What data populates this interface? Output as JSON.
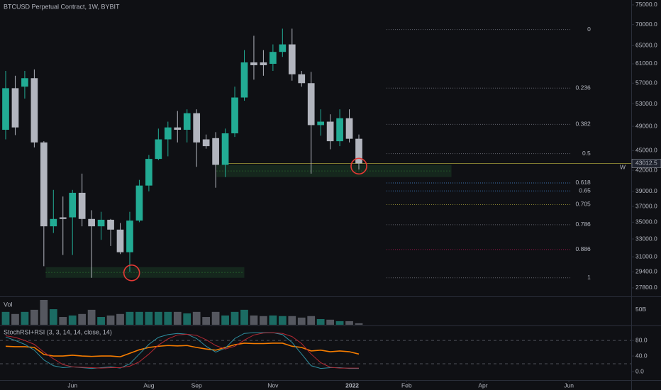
{
  "chart_data": {
    "type": "candlestick",
    "title": "BTCUSD Perpetual Contract, 1W, BYBIT",
    "log_scale": true,
    "up_color": "#22ab94",
    "down_color": "#b2b5be",
    "xlim": [
      -0.594,
      65.53
    ],
    "ylim": [
      26980,
      76300
    ],
    "xticks": [
      {
        "value": 7,
        "label": "Jun"
      },
      {
        "value": 15,
        "label": "Aug"
      },
      {
        "value": 20,
        "label": "Sep"
      },
      {
        "value": 28,
        "label": "Nov"
      },
      {
        "value": 36.3,
        "label": "2022"
      },
      {
        "value": 42,
        "label": "Feb"
      },
      {
        "value": 50,
        "label": "Apr"
      },
      {
        "value": 59,
        "label": "Jun"
      }
    ],
    "yticks": [
      {
        "value": 75000,
        "label": "75000.0"
      },
      {
        "value": 70000,
        "label": "70000.0"
      },
      {
        "value": 65000,
        "label": "65000.0"
      },
      {
        "value": 61000,
        "label": "61000.0"
      },
      {
        "value": 57000,
        "label": "57000.0"
      },
      {
        "value": 53000,
        "label": "53000.0"
      },
      {
        "value": 49000,
        "label": "49000.0"
      },
      {
        "value": 45000,
        "label": "45000.0"
      },
      {
        "value": 42000,
        "label": "42000.0"
      },
      {
        "value": 39000,
        "label": "39000.0"
      },
      {
        "value": 37000,
        "label": "37000.0"
      },
      {
        "value": 35000,
        "label": "35000.0"
      },
      {
        "value": 33000,
        "label": "33000.0"
      },
      {
        "value": 31000,
        "label": "31000.0"
      },
      {
        "value": 29400,
        "label": "29400.0"
      },
      {
        "value": 27800,
        "label": "27800.0"
      }
    ],
    "open": [
      48400,
      56000,
      56300,
      58000,
      46300,
      34500,
      35600,
      35600,
      38800,
      35400,
      34500,
      35300,
      34100,
      31500,
      35200,
      39800,
      43700,
      46800,
      48800,
      48400,
      51300,
      46800,
      47000,
      42800,
      47800,
      54200,
      61300,
      61300,
      61000,
      63600,
      65300,
      58800,
      57000,
      49200,
      49800,
      46500,
      50400,
      46900
    ],
    "high": [
      59500,
      58500,
      59500,
      59800,
      46500,
      39200,
      38300,
      39200,
      41500,
      36500,
      36300,
      35400,
      34900,
      36300,
      40600,
      44300,
      48600,
      49800,
      51700,
      52000,
      52000,
      47600,
      48000,
      48600,
      56300,
      64000,
      67300,
      64000,
      65300,
      69000,
      69000,
      59500,
      59300,
      52000,
      51100,
      52000,
      52000,
      47600
    ],
    "low": [
      46800,
      47500,
      54000,
      45500,
      30000,
      33700,
      31200,
      31200,
      34500,
      28800,
      32900,
      32200,
      31300,
      29400,
      35000,
      39000,
      43500,
      44100,
      46300,
      46300,
      42500,
      45300,
      39500,
      41000,
      47200,
      53600,
      57700,
      58500,
      59500,
      62500,
      57500,
      56300,
      41500,
      47400,
      45200,
      45700,
      46300,
      42100
    ],
    "close": [
      56000,
      48800,
      58000,
      46300,
      34500,
      35400,
      35400,
      38800,
      35400,
      34500,
      35300,
      34100,
      31500,
      35200,
      39800,
      43700,
      46800,
      48800,
      48400,
      51300,
      46300,
      45700,
      42800,
      47800,
      54200,
      61300,
      60700,
      60700,
      63600,
      65300,
      58800,
      57000,
      49200,
      49800,
      46500,
      50400,
      46900,
      43012.5
    ],
    "volume_label": "Vol",
    "volume": [
      43,
      36,
      43,
      50,
      83,
      52,
      26,
      31,
      36,
      50,
      26,
      31,
      36,
      43,
      43,
      43,
      43,
      43,
      43,
      38,
      43,
      26,
      43,
      31,
      43,
      50,
      31,
      29,
      31,
      29,
      29,
      24,
      29,
      19,
      17,
      12,
      12,
      5
    ],
    "volume_ylim": [
      0,
      90
    ],
    "volume_ticks": [
      {
        "value": 50,
        "label": "50B"
      }
    ],
    "indicator_label": "StochRSI+RSI (3, 3, 14, 14, close, 14)",
    "indicator_ylim": [
      -20,
      113
    ],
    "indicator_ticks": [
      {
        "value": 80,
        "label": "80.0"
      },
      {
        "value": 40,
        "label": "40.0"
      },
      {
        "value": 0,
        "label": "0.0"
      }
    ],
    "indicator_bands": [
      80,
      20
    ],
    "indicator_series": [
      {
        "color": "#f57c00",
        "values": [
          65,
          64,
          64,
          62,
          44,
          40,
          40,
          42,
          40,
          39,
          40,
          40,
          38,
          47,
          56,
          62,
          65,
          67,
          66,
          67,
          62,
          58,
          55,
          62,
          69,
          73,
          72,
          72,
          73,
          73,
          65,
          62,
          53,
          55,
          51,
          53,
          51,
          45
        ]
      },
      {
        "color": "#2f8fa0",
        "values": [
          89,
          80,
          70,
          55,
          30,
          15,
          10,
          12,
          10,
          8,
          10,
          12,
          9,
          20,
          45,
          70,
          88,
          95,
          98,
          96,
          85,
          65,
          50,
          60,
          85,
          98,
          100,
          100,
          100,
          95,
          75,
          45,
          15,
          8,
          10,
          10,
          8,
          8
        ]
      },
      {
        "color": "#b22833",
        "values": [
          92,
          88,
          80,
          70,
          50,
          33,
          18,
          12,
          11,
          10,
          9,
          10,
          10,
          14,
          25,
          45,
          68,
          84,
          94,
          96,
          93,
          82,
          67,
          58,
          65,
          81,
          94,
          99,
          100,
          98,
          90,
          72,
          45,
          23,
          11,
          9,
          9,
          9
        ]
      }
    ],
    "fib": {
      "high": 68800,
      "low": 28800,
      "x": [
        39.9,
        59.2
      ],
      "levels": [
        0,
        0.236,
        0.382,
        0.5,
        0.618,
        0.65,
        0.705,
        0.786,
        0.886,
        1
      ],
      "colors": [
        "#787b86",
        "#787b86",
        "#787b86",
        "#787b86",
        "#4a90e2",
        "#4a90e2",
        "#a8a13a",
        "#787b86",
        "#c2185b",
        "#787b86"
      ]
    },
    "price_line": 43012.5,
    "price_line_start": 23,
    "price_line_label": "W",
    "price_line_color": "#a8a13a",
    "zones": [
      {
        "x": [
          4.2,
          25
        ],
        "y": [
          29900,
          28800
        ]
      },
      {
        "x": [
          22.1,
          46.7
        ],
        "y": [
          42800,
          41000
        ]
      }
    ],
    "zone_color": "#1b3a24",
    "markers": [
      {
        "x": 13.2,
        "y": 29300
      },
      {
        "x": 37,
        "y": 42600
      }
    ],
    "marker_color": "#e53935"
  }
}
